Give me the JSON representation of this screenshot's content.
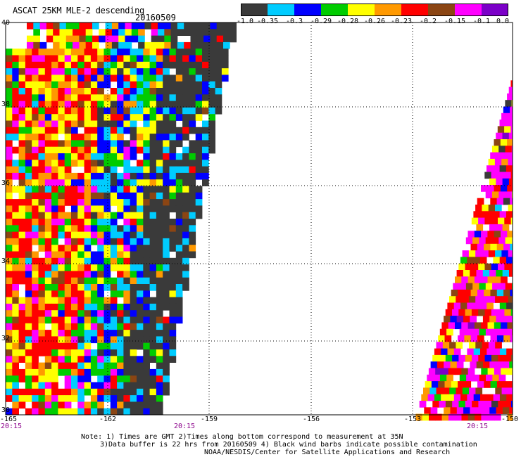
{
  "header": {
    "title": "ASCAT 25KM MLE-2 descending",
    "date": "20160509"
  },
  "colorbar": {
    "labels": [
      "-1.0",
      "-0.35",
      "-0.3",
      "-0.29",
      "-0.28",
      "-0.26",
      "-0.23",
      "-0.2",
      "-0.15",
      "-0.1",
      "0.0"
    ],
    "colors": [
      "#3a3a3a",
      "#00ccff",
      "#0000ff",
      "#00cc00",
      "#ffff00",
      "#ff9900",
      "#ff0000",
      "#8b4513",
      "#ff00ff",
      "#7b00c8"
    ]
  },
  "map": {
    "lat_labels": [
      "40",
      "38",
      "36",
      "34",
      "32",
      "30"
    ],
    "lon_labels": [
      "-165",
      "-162",
      "-159",
      "-156",
      "-153",
      "-150"
    ],
    "time_labels": [
      "20:15",
      "20:15",
      "20:15"
    ]
  },
  "footer": {
    "note1": "Note: 1) Times are GMT 2)Times along bottom correspond to measurement at 35N",
    "note2": "3)Data buffer is 22 hrs from 20160509 4) Black wind barbs indicate possible contamination",
    "note3": "NOAA/NESDIS/Center for Satellite Applications and Research"
  }
}
